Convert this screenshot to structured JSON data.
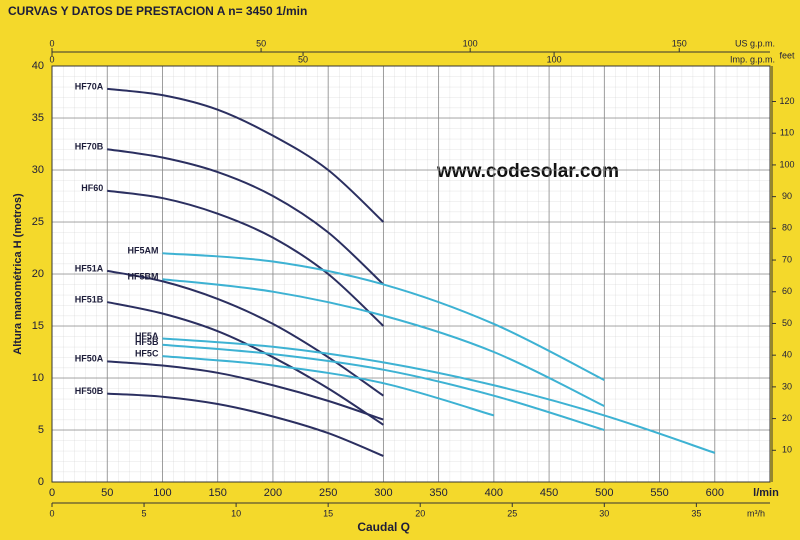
{
  "chart_data": {
    "type": "line",
    "title": "CURVAS Y DATOS DE PRESTACION A n= 3450  1/min",
    "annotation": "www.codesolar.com",
    "xlabel": "Caudal Q",
    "xunit": "l/min",
    "ylabel": "Altura manométrica H (metros)",
    "xlim": [
      0,
      650
    ],
    "xticks": [
      0,
      50,
      100,
      150,
      200,
      250,
      300,
      350,
      400,
      450,
      500,
      550,
      600
    ],
    "ylim": [
      0,
      40
    ],
    "yticks": [
      0,
      5,
      10,
      15,
      20,
      25,
      30,
      35,
      40
    ],
    "grid": true,
    "secondary_axes": [
      {
        "side": "top-outer",
        "label": "US g.p.m.",
        "lim": [
          0,
          171.7
        ],
        "ticks": [
          0,
          50,
          100,
          150
        ]
      },
      {
        "side": "top-inner",
        "label": "Imp. g.p.m.",
        "lim": [
          0,
          143
        ],
        "ticks": [
          0,
          50,
          100
        ]
      },
      {
        "side": "bottom-inner",
        "label": "m³/h",
        "lim": [
          0,
          39
        ],
        "ticks": [
          0,
          5,
          10,
          15,
          20,
          25,
          30,
          35
        ]
      },
      {
        "side": "right",
        "label": "feet",
        "lim": [
          0,
          131.2
        ],
        "ticks": [
          10,
          20,
          30,
          40,
          50,
          60,
          70,
          80,
          90,
          100,
          110,
          120
        ]
      }
    ],
    "series": [
      {
        "name": "HF70A",
        "color": "#2b2f60",
        "x": [
          50,
          100,
          150,
          200,
          250,
          300
        ],
        "values": [
          37.8,
          37.2,
          35.8,
          33.3,
          30,
          25
        ]
      },
      {
        "name": "HF70B",
        "color": "#2b2f60",
        "x": [
          50,
          100,
          150,
          200,
          250,
          300
        ],
        "values": [
          32,
          31.2,
          29.8,
          27.5,
          24,
          19
        ]
      },
      {
        "name": "HF60",
        "color": "#2b2f60",
        "x": [
          50,
          100,
          150,
          200,
          250,
          300
        ],
        "values": [
          28,
          27.3,
          25.8,
          23.5,
          20,
          15
        ]
      },
      {
        "name": "HF51A",
        "color": "#2b2f60",
        "x": [
          50,
          100,
          150,
          200,
          250,
          300
        ],
        "values": [
          20.3,
          19.3,
          17.6,
          15.2,
          12,
          8.3
        ]
      },
      {
        "name": "HF51B",
        "color": "#2b2f60",
        "x": [
          50,
          100,
          150,
          200,
          250,
          300
        ],
        "values": [
          17.3,
          16.2,
          14.5,
          12,
          9,
          5.5
        ]
      },
      {
        "name": "HF50A",
        "color": "#2b2f60",
        "x": [
          50,
          100,
          150,
          200,
          250,
          300
        ],
        "values": [
          11.6,
          11.2,
          10.5,
          9.3,
          7.8,
          6
        ]
      },
      {
        "name": "HF50B",
        "color": "#2b2f60",
        "x": [
          50,
          100,
          150,
          200,
          250,
          300
        ],
        "values": [
          8.5,
          8.2,
          7.5,
          6.3,
          4.7,
          2.5
        ]
      },
      {
        "name": "HF5AM",
        "color": "#3db2d3",
        "x": [
          100,
          200,
          300,
          400,
          500
        ],
        "values": [
          22,
          21.2,
          19,
          15.2,
          9.8
        ]
      },
      {
        "name": "HF5BM",
        "color": "#3db2d3",
        "x": [
          100,
          200,
          300,
          400,
          500
        ],
        "values": [
          19.5,
          18.3,
          16,
          12.5,
          7.3
        ]
      },
      {
        "name": "HF5A",
        "color": "#3db2d3",
        "x": [
          100,
          200,
          300,
          400,
          500,
          600
        ],
        "values": [
          13.8,
          13,
          11.5,
          9.3,
          6.4,
          2.8
        ]
      },
      {
        "name": "HF5B",
        "color": "#3db2d3",
        "x": [
          100,
          200,
          300,
          400,
          500
        ],
        "values": [
          13.2,
          12.3,
          10.8,
          8.3,
          5
        ]
      },
      {
        "name": "HF5C",
        "color": "#3db2d3",
        "x": [
          100,
          200,
          300,
          400
        ],
        "values": [
          12.1,
          11.2,
          9.5,
          6.4
        ]
      }
    ]
  }
}
